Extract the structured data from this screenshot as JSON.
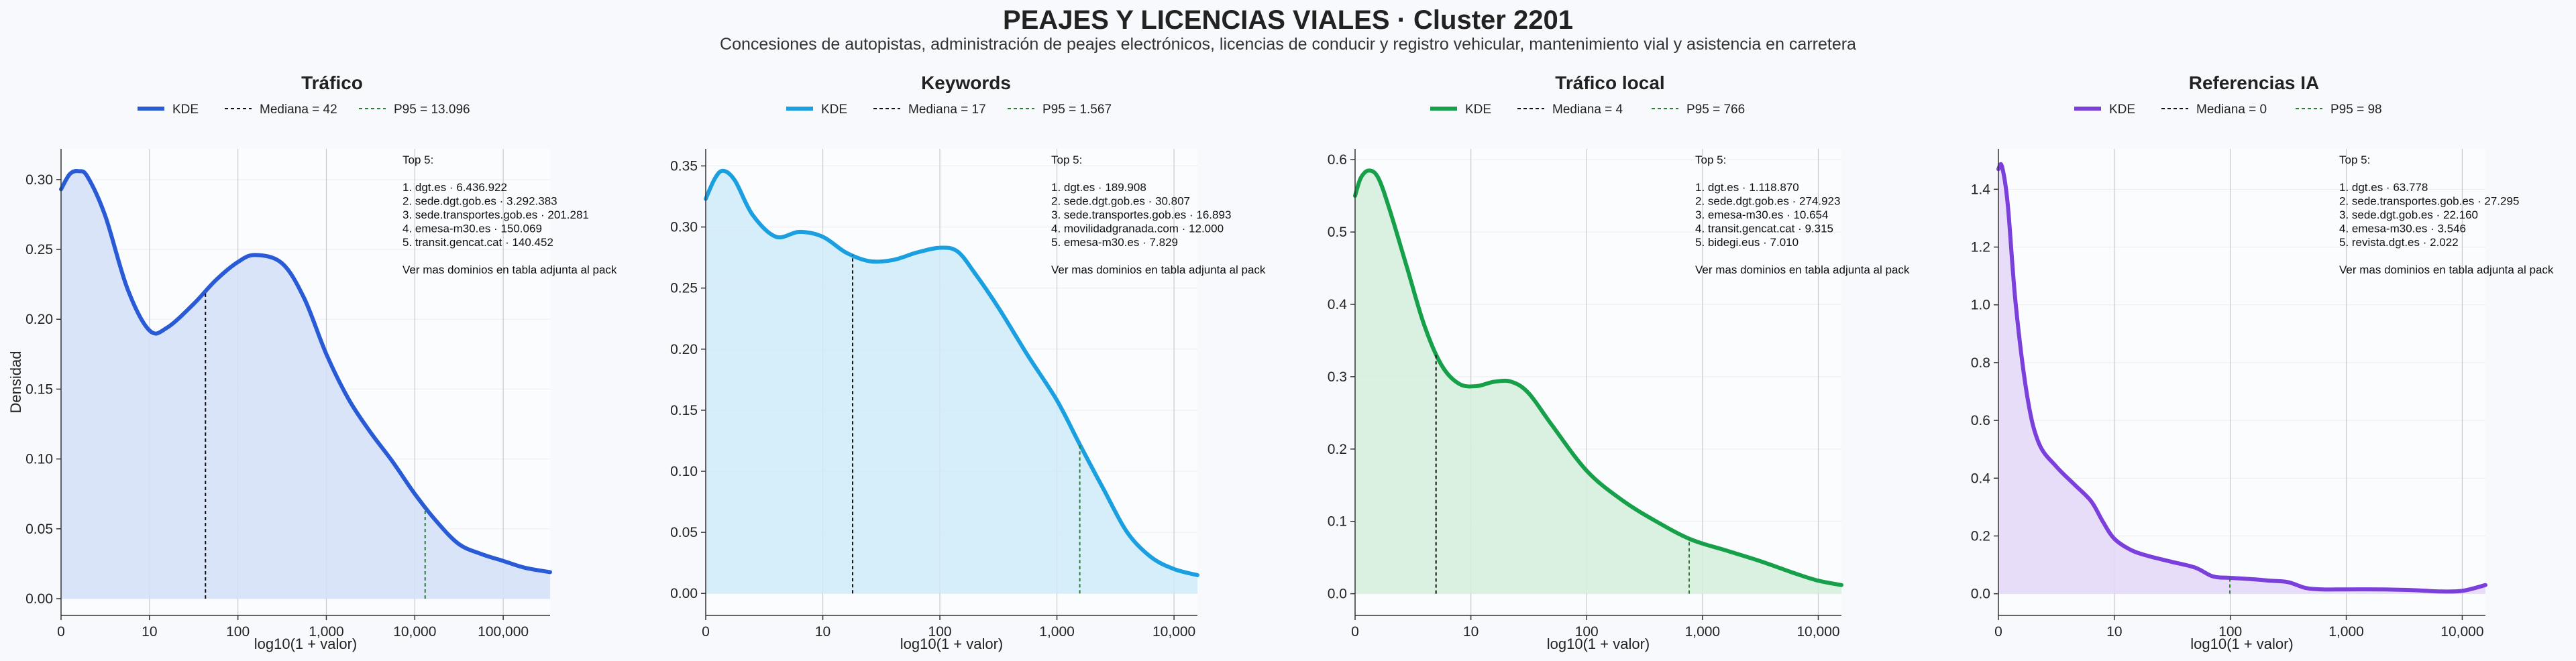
{
  "title": "PEAJES Y LICENCIAS VIALES · Cluster 2201",
  "subtitle": "Concesiones de autopistas, administración de peajes electrónicos, licencias de conducir y registro vehicular, mantenimiento vial y asistencia en carretera",
  "chart_data": [
    {
      "type": "area",
      "title": "Tráfico",
      "color": "#2a5bd7",
      "fill": "#d4dff8",
      "xlabel": "log10(1 + valor)",
      "ylabel": "Densidad",
      "x_scale": "log10(1+x)",
      "xlim": [
        0,
        5.53
      ],
      "ylim": [
        -0.012,
        0.322
      ],
      "x_ticks": [
        {
          "v": 0,
          "label": "0"
        },
        {
          "v": 1,
          "label": "10"
        },
        {
          "v": 2,
          "label": "100"
        },
        {
          "v": 3,
          "label": "1,000"
        },
        {
          "v": 4,
          "label": "10,000"
        },
        {
          "v": 5,
          "label": "100,000"
        }
      ],
      "y_ticks": [
        {
          "v": 0,
          "label": "0.00"
        },
        {
          "v": 0.05,
          "label": "0.05"
        },
        {
          "v": 0.1,
          "label": "0.10"
        },
        {
          "v": 0.15,
          "label": "0.15"
        },
        {
          "v": 0.2,
          "label": "0.20"
        },
        {
          "v": 0.25,
          "label": "0.25"
        },
        {
          "v": 0.3,
          "label": "0.30"
        }
      ],
      "kde": [
        [
          0,
          0.293
        ],
        [
          0.1,
          0.304
        ],
        [
          0.2,
          0.306
        ],
        [
          0.3,
          0.302
        ],
        [
          0.5,
          0.274
        ],
        [
          0.75,
          0.222
        ],
        [
          1.0,
          0.192
        ],
        [
          1.2,
          0.194
        ],
        [
          1.5,
          0.211
        ],
        [
          1.75,
          0.228
        ],
        [
          2.0,
          0.241
        ],
        [
          2.2,
          0.246
        ],
        [
          2.5,
          0.24
        ],
        [
          2.75,
          0.215
        ],
        [
          3.0,
          0.175
        ],
        [
          3.25,
          0.143
        ],
        [
          3.5,
          0.119
        ],
        [
          3.75,
          0.098
        ],
        [
          4.0,
          0.075
        ],
        [
          4.25,
          0.055
        ],
        [
          4.5,
          0.039
        ],
        [
          4.75,
          0.032
        ],
        [
          5.0,
          0.027
        ],
        [
          5.25,
          0.022
        ],
        [
          5.53,
          0.019
        ]
      ],
      "legend": {
        "kde": "KDE",
        "median": "Mediana = 42",
        "p95": "P95 = 13.096"
      },
      "median_x": 1.633,
      "p95_x": 4.117,
      "top5": [
        "Top 5:",
        "",
        "1. dgt.es · 6.436.922",
        "2. sede.dgt.gob.es · 3.292.383",
        "3. sede.transportes.gob.es · 201.281",
        "4. emesa-m30.es · 150.069",
        "5. transit.gencat.cat · 140.452",
        "",
        "Ver mas dominios en tabla adjunta al pack"
      ]
    },
    {
      "type": "area",
      "title": "Keywords",
      "color": "#1a9fe0",
      "fill": "#cfeaf9",
      "xlabel": "log10(1 + valor)",
      "ylabel": "",
      "x_scale": "log10(1+x)",
      "xlim": [
        0,
        4.2
      ],
      "ylim": [
        -0.018,
        0.364
      ],
      "x_ticks": [
        {
          "v": 0,
          "label": "0"
        },
        {
          "v": 1,
          "label": "10"
        },
        {
          "v": 2,
          "label": "100"
        },
        {
          "v": 3,
          "label": "1,000"
        },
        {
          "v": 4,
          "label": "10,000"
        }
      ],
      "y_ticks": [
        {
          "v": 0,
          "label": "0.00"
        },
        {
          "v": 0.05,
          "label": "0.05"
        },
        {
          "v": 0.1,
          "label": "0.10"
        },
        {
          "v": 0.15,
          "label": "0.15"
        },
        {
          "v": 0.2,
          "label": "0.20"
        },
        {
          "v": 0.25,
          "label": "0.25"
        },
        {
          "v": 0.3,
          "label": "0.30"
        },
        {
          "v": 0.35,
          "label": "0.35"
        }
      ],
      "kde": [
        [
          0,
          0.323
        ],
        [
          0.08,
          0.34
        ],
        [
          0.15,
          0.346
        ],
        [
          0.25,
          0.338
        ],
        [
          0.4,
          0.31
        ],
        [
          0.6,
          0.292
        ],
        [
          0.8,
          0.296
        ],
        [
          1.0,
          0.292
        ],
        [
          1.2,
          0.279
        ],
        [
          1.4,
          0.272
        ],
        [
          1.6,
          0.273
        ],
        [
          1.8,
          0.279
        ],
        [
          2.0,
          0.283
        ],
        [
          2.15,
          0.28
        ],
        [
          2.3,
          0.262
        ],
        [
          2.5,
          0.234
        ],
        [
          2.75,
          0.195
        ],
        [
          3.0,
          0.158
        ],
        [
          3.2,
          0.121
        ],
        [
          3.4,
          0.085
        ],
        [
          3.6,
          0.05
        ],
        [
          3.8,
          0.03
        ],
        [
          4.0,
          0.02
        ],
        [
          4.2,
          0.015
        ]
      ],
      "legend": {
        "kde": "KDE",
        "median": "Mediana = 17",
        "p95": "P95 = 1.567"
      },
      "median_x": 1.255,
      "p95_x": 3.195,
      "top5": [
        "Top 5:",
        "",
        "1. dgt.es · 189.908",
        "2. sede.dgt.gob.es · 30.807",
        "3. sede.transportes.gob.es · 16.893",
        "4. movilidadgranada.com · 12.000",
        "5. emesa-m30.es · 7.829",
        "",
        "Ver mas dominios en tabla adjunta al pack"
      ]
    },
    {
      "type": "area",
      "title": "Tráfico local",
      "color": "#17a04a",
      "fill": "#d3efdc",
      "xlabel": "log10(1 + valor)",
      "ylabel": "",
      "x_scale": "log10(1+x)",
      "xlim": [
        0,
        4.2
      ],
      "ylim": [
        -0.03,
        0.615
      ],
      "x_ticks": [
        {
          "v": 0,
          "label": "0"
        },
        {
          "v": 1,
          "label": "10"
        },
        {
          "v": 2,
          "label": "100"
        },
        {
          "v": 3,
          "label": "1,000"
        },
        {
          "v": 4,
          "label": "10,000"
        }
      ],
      "y_ticks": [
        {
          "v": 0,
          "label": "0.0"
        },
        {
          "v": 0.1,
          "label": "0.1"
        },
        {
          "v": 0.2,
          "label": "0.2"
        },
        {
          "v": 0.3,
          "label": "0.3"
        },
        {
          "v": 0.4,
          "label": "0.4"
        },
        {
          "v": 0.5,
          "label": "0.5"
        },
        {
          "v": 0.6,
          "label": "0.6"
        }
      ],
      "kde": [
        [
          0,
          0.55
        ],
        [
          0.05,
          0.575
        ],
        [
          0.12,
          0.585
        ],
        [
          0.2,
          0.575
        ],
        [
          0.3,
          0.53
        ],
        [
          0.45,
          0.45
        ],
        [
          0.6,
          0.37
        ],
        [
          0.75,
          0.315
        ],
        [
          0.9,
          0.29
        ],
        [
          1.05,
          0.287
        ],
        [
          1.2,
          0.293
        ],
        [
          1.35,
          0.293
        ],
        [
          1.5,
          0.277
        ],
        [
          1.7,
          0.233
        ],
        [
          2.0,
          0.17
        ],
        [
          2.3,
          0.13
        ],
        [
          2.6,
          0.1
        ],
        [
          2.9,
          0.075
        ],
        [
          3.2,
          0.06
        ],
        [
          3.5,
          0.045
        ],
        [
          3.8,
          0.028
        ],
        [
          4.0,
          0.018
        ],
        [
          4.2,
          0.012
        ]
      ],
      "legend": {
        "kde": "KDE",
        "median": "Mediana = 4",
        "p95": "P95 = 766"
      },
      "median_x": 0.699,
      "p95_x": 2.885,
      "top5": [
        "Top 5:",
        "",
        "1. dgt.es · 1.118.870",
        "2. sede.dgt.gob.es · 274.923",
        "3. emesa-m30.es · 10.654",
        "4. transit.gencat.cat · 9.315",
        "5. bidegi.eus · 7.010",
        "",
        "Ver mas dominios en tabla adjunta al pack"
      ]
    },
    {
      "type": "area",
      "title": "Referencias IA",
      "color": "#7b3fdc",
      "fill": "#e4d7f8",
      "xlabel": "log10(1 + valor)",
      "ylabel": "",
      "x_scale": "log10(1+x)",
      "xlim": [
        0,
        4.2
      ],
      "ylim": [
        -0.075,
        1.54
      ],
      "x_ticks": [
        {
          "v": 0,
          "label": "0"
        },
        {
          "v": 1,
          "label": "10"
        },
        {
          "v": 2,
          "label": "100"
        },
        {
          "v": 3,
          "label": "1,000"
        },
        {
          "v": 4,
          "label": "10,000"
        }
      ],
      "y_ticks": [
        {
          "v": 0,
          "label": "0.0"
        },
        {
          "v": 0.2,
          "label": "0.2"
        },
        {
          "v": 0.4,
          "label": "0.4"
        },
        {
          "v": 0.6,
          "label": "0.6"
        },
        {
          "v": 0.8,
          "label": "0.8"
        },
        {
          "v": 1.0,
          "label": "1.0"
        },
        {
          "v": 1.2,
          "label": "1.2"
        },
        {
          "v": 1.4,
          "label": "1.4"
        }
      ],
      "kde": [
        [
          0,
          1.47
        ],
        [
          0.03,
          1.48
        ],
        [
          0.08,
          1.35
        ],
        [
          0.15,
          1.0
        ],
        [
          0.25,
          0.68
        ],
        [
          0.35,
          0.52
        ],
        [
          0.5,
          0.44
        ],
        [
          0.65,
          0.38
        ],
        [
          0.8,
          0.32
        ],
        [
          0.9,
          0.25
        ],
        [
          1.0,
          0.19
        ],
        [
          1.15,
          0.15
        ],
        [
          1.3,
          0.13
        ],
        [
          1.5,
          0.11
        ],
        [
          1.7,
          0.09
        ],
        [
          1.85,
          0.06
        ],
        [
          2.0,
          0.055
        ],
        [
          2.2,
          0.05
        ],
        [
          2.35,
          0.045
        ],
        [
          2.5,
          0.04
        ],
        [
          2.65,
          0.02
        ],
        [
          2.8,
          0.015
        ],
        [
          3.0,
          0.015
        ],
        [
          3.3,
          0.015
        ],
        [
          3.6,
          0.012
        ],
        [
          3.8,
          0.008
        ],
        [
          4.0,
          0.01
        ],
        [
          4.2,
          0.03
        ]
      ],
      "legend": {
        "kde": "KDE",
        "median": "Mediana = 0",
        "p95": "P95 = 98"
      },
      "median_x": 0.0,
      "p95_x": 1.996,
      "top5": [
        "Top 5:",
        "",
        "1. dgt.es · 63.778",
        "2. sede.transportes.gob.es · 27.295",
        "3. sede.dgt.gob.es · 22.160",
        "4. emesa-m30.es · 3.546",
        "5. revista.dgt.es · 2.022",
        "",
        "Ver mas dominios en tabla adjunta al pack"
      ]
    }
  ]
}
